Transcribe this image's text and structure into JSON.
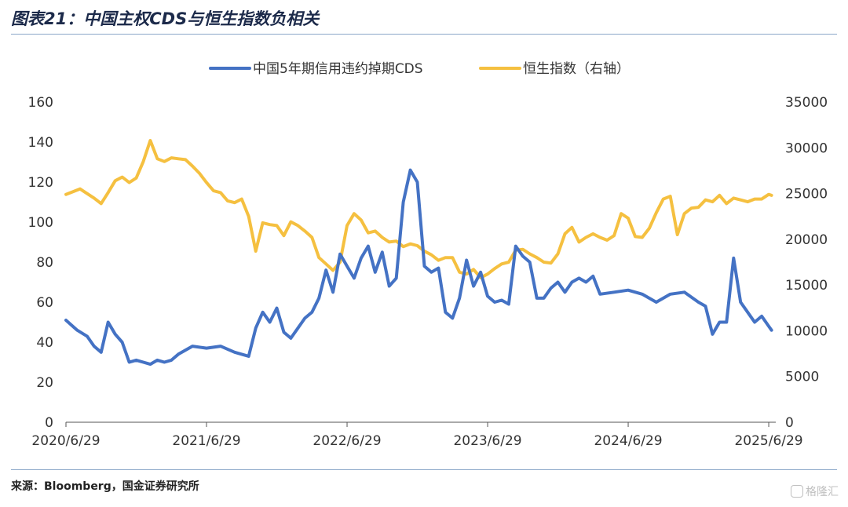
{
  "figure": {
    "title": "图表21：中国主权CDS与恒生指数负相关",
    "source": "来源：Bloomberg，国金证券研究所",
    "watermark": "格隆汇"
  },
  "colors": {
    "cds": "#4472C4",
    "hsi": "#F5C040",
    "axis": "#333333",
    "rule": "#8aa6c8"
  },
  "chart_data": {
    "type": "line",
    "title": "",
    "legend_position": "top-center",
    "grid": false,
    "x_ticks": [
      "2020/6/29",
      "2021/6/29",
      "2022/6/29",
      "2023/6/29",
      "2024/6/29",
      "2025/6/29"
    ],
    "x_range": [
      0,
      5.05
    ],
    "y_left": {
      "label": "",
      "range": [
        0,
        160
      ],
      "ticks": [
        0,
        20,
        40,
        60,
        80,
        100,
        120,
        140,
        160
      ]
    },
    "y_right": {
      "label": "",
      "range": [
        0,
        35000
      ],
      "ticks": [
        0,
        5000,
        10000,
        15000,
        20000,
        25000,
        30000,
        35000
      ]
    },
    "series": [
      {
        "name": "中国5年期信用违约掉期CDS",
        "axis": "left",
        "color": "#4472C4",
        "x": [
          0,
          0.08,
          0.15,
          0.2,
          0.25,
          0.3,
          0.35,
          0.4,
          0.45,
          0.5,
          0.55,
          0.6,
          0.65,
          0.7,
          0.75,
          0.8,
          0.9,
          1.0,
          1.1,
          1.2,
          1.3,
          1.35,
          1.4,
          1.45,
          1.5,
          1.55,
          1.6,
          1.7,
          1.75,
          1.8,
          1.85,
          1.9,
          1.95,
          2.0,
          2.05,
          2.1,
          2.15,
          2.2,
          2.25,
          2.3,
          2.35,
          2.4,
          2.45,
          2.5,
          2.55,
          2.6,
          2.65,
          2.7,
          2.75,
          2.8,
          2.85,
          2.9,
          2.95,
          3.0,
          3.05,
          3.1,
          3.15,
          3.2,
          3.25,
          3.3,
          3.35,
          3.4,
          3.45,
          3.5,
          3.55,
          3.6,
          3.65,
          3.7,
          3.75,
          3.8,
          3.9,
          4.0,
          4.1,
          4.2,
          4.3,
          4.4,
          4.5,
          4.55,
          4.6,
          4.65,
          4.7,
          4.75,
          4.8,
          4.85,
          4.9,
          4.95,
          5.0,
          5.02
        ],
        "values": [
          51,
          46,
          43,
          38,
          35,
          50,
          44,
          40,
          30,
          31,
          30,
          29,
          31,
          30,
          31,
          34,
          38,
          37,
          38,
          35,
          33,
          47,
          55,
          50,
          57,
          45,
          42,
          52,
          55,
          62,
          76,
          65,
          84,
          78,
          72,
          82,
          88,
          75,
          85,
          68,
          72,
          110,
          126,
          120,
          78,
          75,
          77,
          55,
          52,
          62,
          81,
          68,
          75,
          63,
          60,
          61,
          59,
          88,
          83,
          80,
          62,
          62,
          67,
          70,
          65,
          70,
          72,
          70,
          73,
          64,
          65,
          66,
          64,
          60,
          64,
          65,
          60,
          58,
          44,
          50,
          50,
          82,
          60,
          55,
          50,
          53,
          48,
          46
        ]
      },
      {
        "name": "恒生指数（右轴）",
        "axis": "right",
        "color": "#F5C040",
        "x": [
          0,
          0.1,
          0.2,
          0.25,
          0.3,
          0.35,
          0.4,
          0.45,
          0.5,
          0.55,
          0.6,
          0.65,
          0.7,
          0.75,
          0.8,
          0.85,
          0.9,
          0.95,
          1.0,
          1.05,
          1.1,
          1.15,
          1.2,
          1.25,
          1.3,
          1.35,
          1.4,
          1.45,
          1.5,
          1.55,
          1.6,
          1.65,
          1.7,
          1.75,
          1.8,
          1.85,
          1.9,
          1.95,
          2.0,
          2.05,
          2.1,
          2.15,
          2.2,
          2.25,
          2.3,
          2.35,
          2.4,
          2.45,
          2.5,
          2.55,
          2.6,
          2.65,
          2.7,
          2.75,
          2.8,
          2.85,
          2.9,
          2.95,
          3.0,
          3.05,
          3.1,
          3.15,
          3.2,
          3.25,
          3.3,
          3.35,
          3.4,
          3.45,
          3.5,
          3.55,
          3.6,
          3.65,
          3.7,
          3.75,
          3.8,
          3.85,
          3.9,
          3.95,
          4.0,
          4.05,
          4.1,
          4.15,
          4.2,
          4.25,
          4.3,
          4.35,
          4.4,
          4.45,
          4.5,
          4.55,
          4.6,
          4.65,
          4.7,
          4.75,
          4.8,
          4.85,
          4.9,
          4.95,
          5.0,
          5.02
        ],
        "values": [
          24900,
          25500,
          24500,
          23900,
          25100,
          26400,
          26800,
          26200,
          26700,
          28500,
          30800,
          28800,
          28500,
          28900,
          28800,
          28700,
          28000,
          27200,
          26200,
          25300,
          25100,
          24200,
          24000,
          24400,
          22500,
          18700,
          21800,
          21600,
          21500,
          20400,
          21900,
          21500,
          20900,
          20200,
          18000,
          17300,
          16600,
          17500,
          21500,
          22800,
          22100,
          20700,
          20900,
          20200,
          19700,
          19800,
          19200,
          19500,
          19300,
          18700,
          18300,
          17700,
          18000,
          18000,
          16400,
          16200,
          16700,
          15800,
          16200,
          16800,
          17300,
          17500,
          18800,
          18900,
          18400,
          18000,
          17500,
          17400,
          18400,
          20600,
          21300,
          19700,
          20200,
          20600,
          20200,
          19900,
          20400,
          22800,
          22300,
          20300,
          20200,
          21200,
          22900,
          24400,
          24700,
          20500,
          22800,
          23400,
          23500,
          24300,
          24100,
          24800,
          23900,
          24500,
          24300,
          24100,
          24400,
          24400,
          24900,
          24800
        ]
      }
    ]
  }
}
